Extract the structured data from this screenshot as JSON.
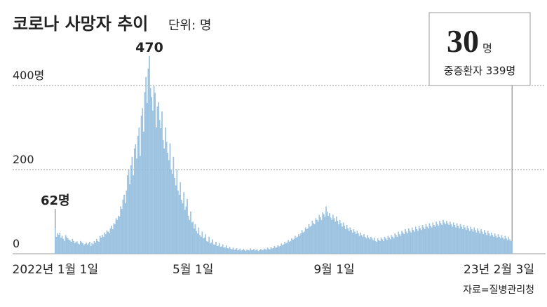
{
  "chart_data": {
    "type": "bar",
    "title": "코로나 사망자 추이",
    "subtitle": "단위: 명",
    "source": "자료=질병관리청",
    "color": "#a3c8e4",
    "grid": true,
    "ylim": [
      0,
      500
    ],
    "yticks": [
      0,
      200,
      {
        "value": 400,
        "label": "400명"
      }
    ],
    "annotations": [
      {
        "text": "62명"
      },
      {
        "text": "470"
      }
    ],
    "callout": {
      "value_label": "30",
      "unit": "명",
      "caption": "중증환자 339명"
    },
    "categories": [
      "2022년 1월 1일",
      null,
      null,
      null,
      null,
      null,
      null,
      null,
      null,
      null,
      null,
      null,
      null,
      null,
      null,
      null,
      null,
      null,
      null,
      null,
      null,
      null,
      null,
      null,
      null,
      null,
      null,
      null,
      null,
      null,
      null,
      null,
      null,
      null,
      null,
      null,
      null,
      null,
      null,
      null,
      null,
      null,
      null,
      null,
      null,
      null,
      null,
      null,
      null,
      null,
      null,
      null,
      null,
      null,
      null,
      null,
      null,
      null,
      null,
      null,
      null,
      null,
      null,
      null,
      null,
      null,
      null,
      null,
      null,
      null,
      null,
      null,
      null,
      null,
      null,
      null,
      null,
      null,
      null,
      null,
      null,
      null,
      null,
      null,
      null,
      null,
      null,
      null,
      null,
      null,
      null,
      null,
      null,
      null,
      null,
      null,
      null,
      null,
      null,
      null,
      null,
      null,
      null,
      null,
      null,
      null,
      null,
      null,
      null,
      null,
      null,
      null,
      null,
      null,
      null,
      null,
      null,
      null,
      null,
      null,
      "5월 1일",
      null,
      null,
      null,
      null,
      null,
      null,
      null,
      null,
      null,
      null,
      null,
      null,
      null,
      null,
      null,
      null,
      null,
      null,
      null,
      null,
      null,
      null,
      null,
      null,
      null,
      null,
      null,
      null,
      null,
      null,
      null,
      null,
      null,
      null,
      null,
      null,
      null,
      null,
      null,
      null,
      null,
      null,
      null,
      null,
      null,
      null,
      null,
      null,
      null,
      null,
      null,
      null,
      null,
      null,
      null,
      null,
      null,
      null,
      null,
      null,
      null,
      null,
      null,
      null,
      null,
      null,
      null,
      null,
      null,
      null,
      null,
      null,
      null,
      null,
      null,
      null,
      null,
      null,
      null,
      null,
      null,
      null,
      null,
      null,
      null,
      null,
      null,
      null,
      null,
      null,
      null,
      null,
      null,
      null,
      null,
      null,
      null,
      null,
      null,
      null,
      null,
      null,
      null,
      null,
      null,
      null,
      null,
      null,
      null,
      null,
      null,
      null,
      null,
      null,
      null,
      null,
      null,
      null,
      null,
      null,
      null,
      null,
      "9월 1일",
      null,
      null,
      null,
      null,
      null,
      null,
      null,
      null,
      null,
      null,
      null,
      null,
      null,
      null,
      null,
      null,
      null,
      null,
      null,
      null,
      null,
      null,
      null,
      null,
      null,
      null,
      null,
      null,
      null,
      null,
      null,
      null,
      null,
      null,
      null,
      null,
      null,
      null,
      null,
      null,
      null,
      null,
      null,
      null,
      null,
      null,
      null,
      null,
      null,
      null,
      null,
      null,
      null,
      null,
      null,
      null,
      null,
      null,
      null,
      null,
      null,
      null,
      null,
      null,
      null,
      null,
      null,
      null,
      null,
      null,
      null,
      null,
      null,
      null,
      null,
      null,
      null,
      null,
      null,
      null,
      null,
      null,
      null,
      null,
      null,
      null,
      null,
      null,
      null,
      null,
      null,
      null,
      null,
      null,
      null,
      null,
      null,
      null,
      null,
      null,
      null,
      null,
      null,
      null,
      null,
      null,
      null,
      null,
      null,
      null,
      null,
      null,
      null,
      null,
      null,
      null,
      null,
      null,
      null,
      null,
      null,
      null,
      null,
      null,
      null,
      null,
      null,
      null,
      null,
      null,
      null,
      null,
      null,
      null,
      null,
      null,
      null,
      null,
      null,
      null,
      null,
      null,
      null,
      null,
      null,
      null,
      null,
      null,
      null,
      null,
      null,
      null,
      null,
      null,
      "23년 2월 3일"
    ],
    "values": [
      62,
      40,
      48,
      45,
      50,
      38,
      42,
      35,
      30,
      44,
      39,
      36,
      33,
      31,
      28,
      35,
      30,
      25,
      27,
      29,
      24,
      22,
      30,
      27,
      25,
      20,
      23,
      26,
      21,
      24,
      28,
      18,
      25,
      22,
      30,
      26,
      35,
      30,
      28,
      42,
      38,
      45,
      40,
      50,
      46,
      55,
      52,
      48,
      60,
      66,
      58,
      72,
      70,
      84,
      80,
      90,
      88,
      112,
      106,
      128,
      140,
      120,
      150,
      186,
      200,
      165,
      210,
      230,
      186,
      250,
      260,
      226,
      280,
      300,
      232,
      328,
      346,
      290,
      384,
      420,
      358,
      440,
      470,
      394,
      372,
      340,
      398,
      382,
      300,
      350,
      360,
      318,
      298,
      338,
      270,
      250,
      300,
      266,
      240,
      222,
      262,
      200,
      190,
      230,
      180,
      162,
      200,
      150,
      140,
      170,
      128,
      120,
      146,
      104,
      112,
      130,
      90,
      80,
      100,
      74,
      76,
      60,
      70,
      54,
      48,
      62,
      44,
      40,
      52,
      36,
      38,
      46,
      30,
      28,
      40,
      24,
      26,
      34,
      22,
      21,
      28,
      18,
      19,
      25,
      16,
      17,
      22,
      14,
      15,
      20,
      13,
      12,
      16,
      11,
      10,
      14,
      9,
      10,
      13,
      8,
      9,
      12,
      7,
      8,
      11,
      9,
      6,
      10,
      8,
      7,
      12,
      9,
      8,
      11,
      7,
      9,
      10,
      6,
      8,
      11,
      9,
      8,
      12,
      10,
      9,
      14,
      11,
      10,
      15,
      12,
      13,
      18,
      14,
      15,
      20,
      17,
      18,
      24,
      20,
      22,
      28,
      24,
      26,
      32,
      28,
      30,
      36,
      33,
      35,
      42,
      38,
      40,
      46,
      42,
      48,
      56,
      50,
      52,
      62,
      58,
      60,
      70,
      64,
      66,
      78,
      72,
      70,
      84,
      80,
      76,
      92,
      86,
      80,
      98,
      94,
      88,
      112,
      100,
      90,
      96,
      86,
      80,
      92,
      84,
      76,
      88,
      78,
      70,
      80,
      72,
      64,
      74,
      66,
      58,
      68,
      60,
      54,
      62,
      56,
      50,
      58,
      52,
      46,
      54,
      48,
      42,
      50,
      44,
      40,
      46,
      40,
      36,
      44,
      38,
      34,
      40,
      36,
      32,
      38,
      30,
      28,
      36,
      32,
      30,
      38,
      34,
      30,
      40,
      36,
      32,
      42,
      38,
      34,
      44,
      40,
      36,
      48,
      44,
      40,
      52,
      46,
      42,
      54,
      50,
      46,
      58,
      52,
      48,
      60,
      54,
      50,
      62,
      56,
      52,
      64,
      58,
      54,
      66,
      60,
      56,
      68,
      62,
      58,
      70,
      64,
      60,
      72,
      66,
      62,
      74,
      68,
      64,
      76,
      70,
      66,
      78,
      72,
      68,
      80,
      74,
      70,
      78,
      72,
      68,
      76,
      70,
      64,
      74,
      68,
      62,
      72,
      66,
      60,
      70,
      64,
      58,
      68,
      62,
      56,
      66,
      60,
      54,
      64,
      58,
      52,
      62,
      56,
      50,
      60,
      54,
      48,
      58,
      52,
      46,
      56,
      50,
      44,
      54,
      48,
      42,
      50,
      44,
      40,
      48,
      42,
      38,
      46,
      40,
      36,
      44,
      38,
      34,
      42,
      36,
      32,
      40,
      34,
      30,
      30
    ]
  }
}
